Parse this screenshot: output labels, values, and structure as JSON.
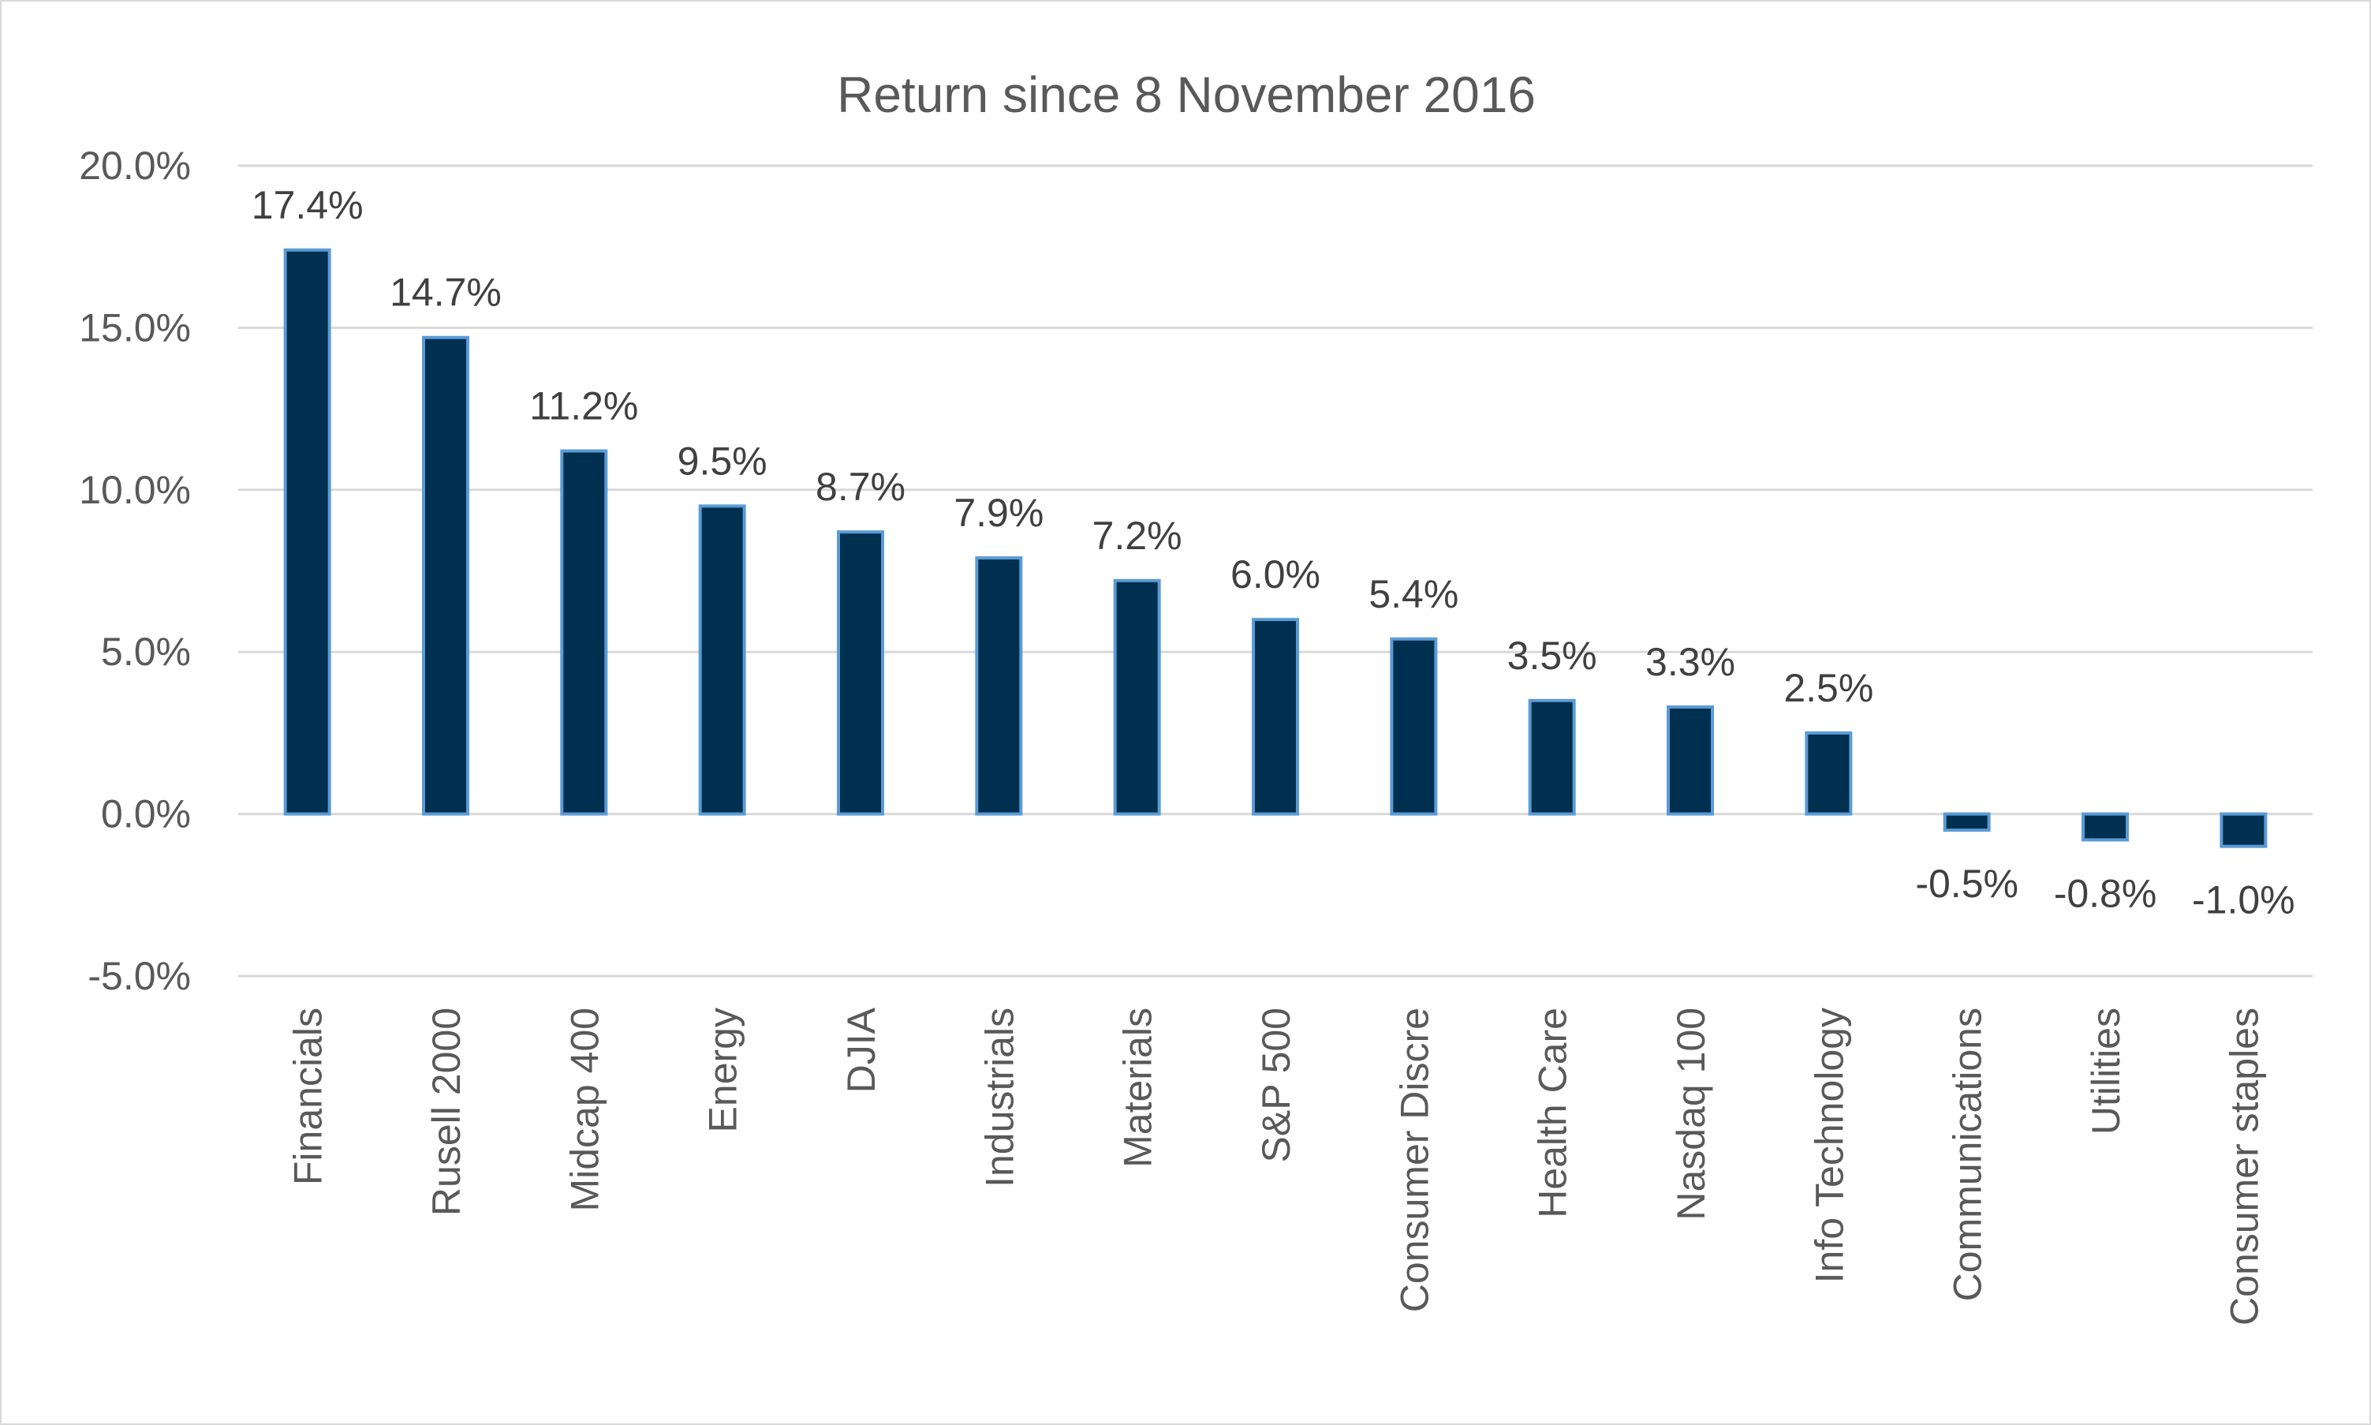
{
  "chart_data": {
    "type": "bar",
    "title": "Return since 8 November 2016",
    "xlabel": "",
    "ylabel": "",
    "categories": [
      "Financials",
      "Rusell 2000",
      "Midcap 400",
      "Energy",
      "DJIA",
      "Industrials",
      "Materials",
      "S&P 500",
      "Consumer Discre",
      "Health Care",
      "Nasdaq 100",
      "Info Technology",
      "Communications",
      "Utilities",
      "Consumer staples"
    ],
    "values": [
      17.4,
      14.7,
      11.2,
      9.5,
      8.7,
      7.9,
      7.2,
      6.0,
      5.4,
      3.5,
      3.3,
      2.5,
      -0.5,
      -0.8,
      -1.0
    ],
    "data_labels": [
      "17.4%",
      "14.7%",
      "11.2%",
      "9.5%",
      "8.7%",
      "7.9%",
      "7.2%",
      "6.0%",
      "5.4%",
      "3.5%",
      "3.3%",
      "2.5%",
      "-0.5%",
      "-0.8%",
      "-1.0%"
    ],
    "ylim": [
      -5,
      20
    ],
    "yticks": [
      -5,
      0,
      5,
      10,
      15,
      20
    ],
    "ytick_labels": [
      "-5.0%",
      "0.0%",
      "5.0%",
      "10.0%",
      "15.0%",
      "20.0%"
    ],
    "grid": true,
    "legend": "none",
    "colors": {
      "bar_fill": "#003050",
      "bar_edge": "#5b9bd5",
      "grid": "#d9d9d9"
    }
  }
}
